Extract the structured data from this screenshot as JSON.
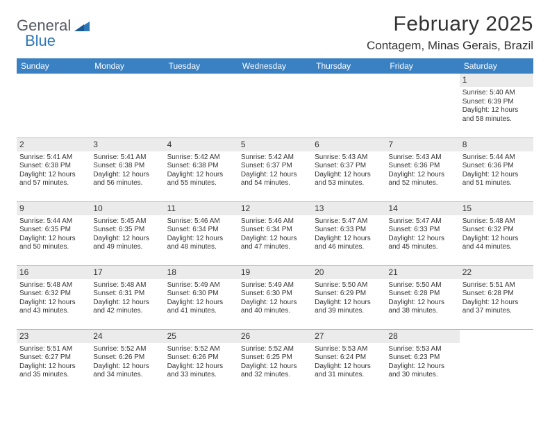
{
  "brand": {
    "part1": "General",
    "part2": "Blue"
  },
  "title": "February 2025",
  "location": "Contagem, Minas Gerais, Brazil",
  "colors": {
    "header_bg": "#3a81c4",
    "header_text": "#ffffff",
    "daynum_bg": "#ebebeb",
    "text": "#333333",
    "logo_gray": "#555a60",
    "logo_blue": "#2c77b8",
    "rule": "#bbbbbb"
  },
  "weekdays": [
    "Sunday",
    "Monday",
    "Tuesday",
    "Wednesday",
    "Thursday",
    "Friday",
    "Saturday"
  ],
  "weeks": [
    [
      {
        "blank": true
      },
      {
        "blank": true
      },
      {
        "blank": true
      },
      {
        "blank": true
      },
      {
        "blank": true
      },
      {
        "blank": true
      },
      {
        "day": "1",
        "sunrise": "Sunrise: 5:40 AM",
        "sunset": "Sunset: 6:39 PM",
        "daylight": "Daylight: 12 hours and 58 minutes."
      }
    ],
    [
      {
        "day": "2",
        "sunrise": "Sunrise: 5:41 AM",
        "sunset": "Sunset: 6:38 PM",
        "daylight": "Daylight: 12 hours and 57 minutes."
      },
      {
        "day": "3",
        "sunrise": "Sunrise: 5:41 AM",
        "sunset": "Sunset: 6:38 PM",
        "daylight": "Daylight: 12 hours and 56 minutes."
      },
      {
        "day": "4",
        "sunrise": "Sunrise: 5:42 AM",
        "sunset": "Sunset: 6:38 PM",
        "daylight": "Daylight: 12 hours and 55 minutes."
      },
      {
        "day": "5",
        "sunrise": "Sunrise: 5:42 AM",
        "sunset": "Sunset: 6:37 PM",
        "daylight": "Daylight: 12 hours and 54 minutes."
      },
      {
        "day": "6",
        "sunrise": "Sunrise: 5:43 AM",
        "sunset": "Sunset: 6:37 PM",
        "daylight": "Daylight: 12 hours and 53 minutes."
      },
      {
        "day": "7",
        "sunrise": "Sunrise: 5:43 AM",
        "sunset": "Sunset: 6:36 PM",
        "daylight": "Daylight: 12 hours and 52 minutes."
      },
      {
        "day": "8",
        "sunrise": "Sunrise: 5:44 AM",
        "sunset": "Sunset: 6:36 PM",
        "daylight": "Daylight: 12 hours and 51 minutes."
      }
    ],
    [
      {
        "day": "9",
        "sunrise": "Sunrise: 5:44 AM",
        "sunset": "Sunset: 6:35 PM",
        "daylight": "Daylight: 12 hours and 50 minutes."
      },
      {
        "day": "10",
        "sunrise": "Sunrise: 5:45 AM",
        "sunset": "Sunset: 6:35 PM",
        "daylight": "Daylight: 12 hours and 49 minutes."
      },
      {
        "day": "11",
        "sunrise": "Sunrise: 5:46 AM",
        "sunset": "Sunset: 6:34 PM",
        "daylight": "Daylight: 12 hours and 48 minutes."
      },
      {
        "day": "12",
        "sunrise": "Sunrise: 5:46 AM",
        "sunset": "Sunset: 6:34 PM",
        "daylight": "Daylight: 12 hours and 47 minutes."
      },
      {
        "day": "13",
        "sunrise": "Sunrise: 5:47 AM",
        "sunset": "Sunset: 6:33 PM",
        "daylight": "Daylight: 12 hours and 46 minutes."
      },
      {
        "day": "14",
        "sunrise": "Sunrise: 5:47 AM",
        "sunset": "Sunset: 6:33 PM",
        "daylight": "Daylight: 12 hours and 45 minutes."
      },
      {
        "day": "15",
        "sunrise": "Sunrise: 5:48 AM",
        "sunset": "Sunset: 6:32 PM",
        "daylight": "Daylight: 12 hours and 44 minutes."
      }
    ],
    [
      {
        "day": "16",
        "sunrise": "Sunrise: 5:48 AM",
        "sunset": "Sunset: 6:32 PM",
        "daylight": "Daylight: 12 hours and 43 minutes."
      },
      {
        "day": "17",
        "sunrise": "Sunrise: 5:48 AM",
        "sunset": "Sunset: 6:31 PM",
        "daylight": "Daylight: 12 hours and 42 minutes."
      },
      {
        "day": "18",
        "sunrise": "Sunrise: 5:49 AM",
        "sunset": "Sunset: 6:30 PM",
        "daylight": "Daylight: 12 hours and 41 minutes."
      },
      {
        "day": "19",
        "sunrise": "Sunrise: 5:49 AM",
        "sunset": "Sunset: 6:30 PM",
        "daylight": "Daylight: 12 hours and 40 minutes."
      },
      {
        "day": "20",
        "sunrise": "Sunrise: 5:50 AM",
        "sunset": "Sunset: 6:29 PM",
        "daylight": "Daylight: 12 hours and 39 minutes."
      },
      {
        "day": "21",
        "sunrise": "Sunrise: 5:50 AM",
        "sunset": "Sunset: 6:28 PM",
        "daylight": "Daylight: 12 hours and 38 minutes."
      },
      {
        "day": "22",
        "sunrise": "Sunrise: 5:51 AM",
        "sunset": "Sunset: 6:28 PM",
        "daylight": "Daylight: 12 hours and 37 minutes."
      }
    ],
    [
      {
        "day": "23",
        "sunrise": "Sunrise: 5:51 AM",
        "sunset": "Sunset: 6:27 PM",
        "daylight": "Daylight: 12 hours and 35 minutes."
      },
      {
        "day": "24",
        "sunrise": "Sunrise: 5:52 AM",
        "sunset": "Sunset: 6:26 PM",
        "daylight": "Daylight: 12 hours and 34 minutes."
      },
      {
        "day": "25",
        "sunrise": "Sunrise: 5:52 AM",
        "sunset": "Sunset: 6:26 PM",
        "daylight": "Daylight: 12 hours and 33 minutes."
      },
      {
        "day": "26",
        "sunrise": "Sunrise: 5:52 AM",
        "sunset": "Sunset: 6:25 PM",
        "daylight": "Daylight: 12 hours and 32 minutes."
      },
      {
        "day": "27",
        "sunrise": "Sunrise: 5:53 AM",
        "sunset": "Sunset: 6:24 PM",
        "daylight": "Daylight: 12 hours and 31 minutes."
      },
      {
        "day": "28",
        "sunrise": "Sunrise: 5:53 AM",
        "sunset": "Sunset: 6:23 PM",
        "daylight": "Daylight: 12 hours and 30 minutes."
      },
      {
        "blank": true
      }
    ]
  ]
}
